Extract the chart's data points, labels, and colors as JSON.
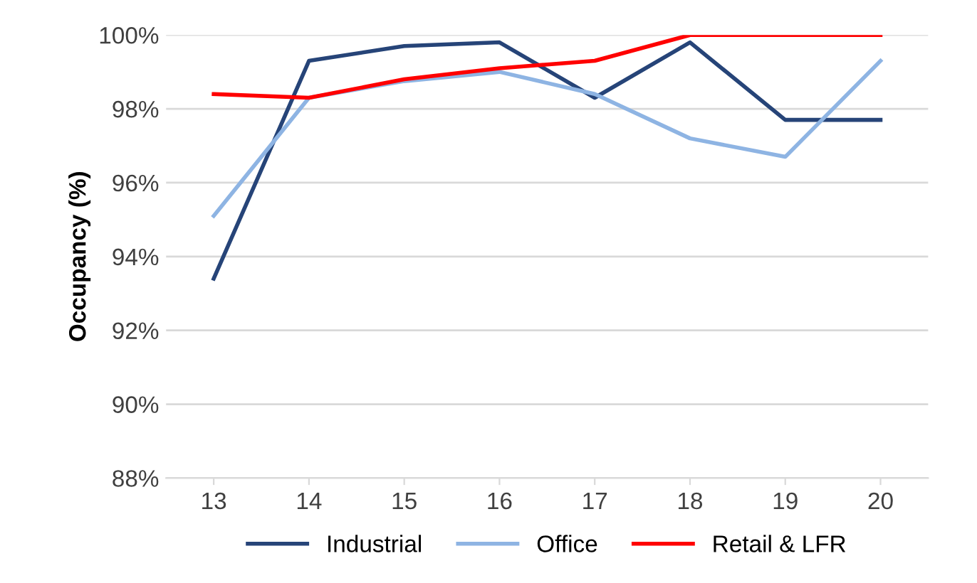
{
  "chart_data": {
    "type": "line",
    "ylabel": "Occupancy (%)",
    "categories": [
      "13",
      "14",
      "15",
      "16",
      "17",
      "18",
      "19",
      "20"
    ],
    "series": [
      {
        "name": "Industrial",
        "color": "#264478",
        "values": [
          93.4,
          99.3,
          99.7,
          99.8,
          98.3,
          99.8,
          97.7,
          97.7
        ]
      },
      {
        "name": "Office",
        "color": "#8eb4e3",
        "values": [
          95.1,
          98.3,
          98.75,
          99.0,
          98.4,
          97.2,
          96.7,
          99.3
        ]
      },
      {
        "name": "Retail & LFR",
        "color": "#ff0000",
        "values": [
          98.4,
          98.3,
          98.8,
          99.1,
          99.3,
          100,
          100,
          100
        ]
      }
    ],
    "ylim": [
      88,
      100
    ],
    "yticks": [
      {
        "value": 88,
        "label": "88%"
      },
      {
        "value": 90,
        "label": "90%"
      },
      {
        "value": 92,
        "label": "92%"
      },
      {
        "value": 94,
        "label": "94%"
      },
      {
        "value": 96,
        "label": "96%"
      },
      {
        "value": 98,
        "label": "98%"
      },
      {
        "value": 100,
        "label": "100%"
      }
    ],
    "grid": "y",
    "legend": "bottom",
    "marker": "none",
    "line_style": "solid"
  }
}
